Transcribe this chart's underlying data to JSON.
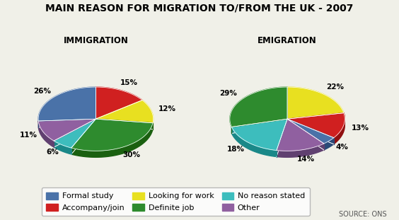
{
  "title": "MAIN REASON FOR MIGRATION TO/FROM THE UK - 2007",
  "immigration_label": "IMMIGRATION",
  "emigration_label": "EMIGRATION",
  "source": "SOURCE: ONS",
  "categories": [
    "Formal study",
    "Accompany/join",
    "Looking for work",
    "Definite job",
    "No reason stated",
    "Other"
  ],
  "colors": [
    "#4a72a8",
    "#d02020",
    "#e8e020",
    "#2e8b2e",
    "#3dbdbd",
    "#9060a0"
  ],
  "dark_colors": [
    "#2a4a78",
    "#901010",
    "#b0b000",
    "#1a6010",
    "#1a8888",
    "#604070"
  ],
  "immigration_sizes": [
    26,
    15,
    12,
    30,
    6,
    11
  ],
  "emigration_sizes": [
    4,
    13,
    22,
    29,
    18,
    14
  ],
  "immigration_labels": [
    "26%",
    "15%",
    "12%",
    "30%",
    "6%",
    "11%"
  ],
  "emigration_labels": [
    "4%",
    "13%",
    "22%",
    "29%",
    "18%",
    "14%"
  ],
  "immigration_startangle": 90,
  "emigration_startangle": 90,
  "bg_color": "#f0f0e8",
  "title_fontsize": 10,
  "subtitle_fontsize": 8.5,
  "label_fontsize": 7.5,
  "legend_fontsize": 8
}
